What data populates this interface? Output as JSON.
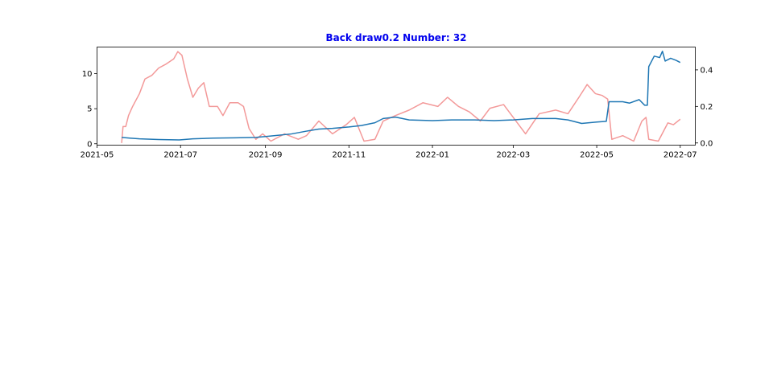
{
  "chart_data": {
    "type": "line",
    "title": "Back draw0.2 Number: 32",
    "title_color": "#0000ee",
    "xlabel": "",
    "ylabel": "",
    "grid": false,
    "x_ticks": [
      "2021-05",
      "2021-07",
      "2021-09",
      "2021-11",
      "2022-01",
      "2022-03",
      "2022-05",
      "2022-07"
    ],
    "y_left": {
      "ticks": [
        0,
        5,
        10
      ],
      "ylim": [
        -0.2,
        13.8
      ]
    },
    "y_right": {
      "ticks": [
        "0.0",
        "0.2",
        "0.4"
      ],
      "ylim": [
        -0.012,
        0.525
      ]
    },
    "xlim": [
      "2021-05-01",
      "2022-07-12"
    ],
    "series": [
      {
        "axis": "left",
        "color": "#1f77b4",
        "opacity": 1,
        "points": [
          [
            "2021-05-19",
            0.9
          ],
          [
            "2021-05-25",
            0.8
          ],
          [
            "2021-06-01",
            0.7
          ],
          [
            "2021-06-15",
            0.6
          ],
          [
            "2021-06-30",
            0.55
          ],
          [
            "2021-07-10",
            0.7
          ],
          [
            "2021-07-25",
            0.8
          ],
          [
            "2021-08-10",
            0.85
          ],
          [
            "2021-08-25",
            0.9
          ],
          [
            "2021-09-05",
            1.1
          ],
          [
            "2021-09-20",
            1.4
          ],
          [
            "2021-10-01",
            1.8
          ],
          [
            "2021-10-10",
            2.1
          ],
          [
            "2021-10-20",
            2.2
          ],
          [
            "2021-11-01",
            2.4
          ],
          [
            "2021-11-10",
            2.6
          ],
          [
            "2021-11-20",
            3.0
          ],
          [
            "2021-11-26",
            3.6
          ],
          [
            "2021-12-05",
            3.8
          ],
          [
            "2021-12-15",
            3.4
          ],
          [
            "2022-01-01",
            3.3
          ],
          [
            "2022-01-15",
            3.4
          ],
          [
            "2022-02-01",
            3.4
          ],
          [
            "2022-02-15",
            3.3
          ],
          [
            "2022-03-01",
            3.4
          ],
          [
            "2022-03-15",
            3.6
          ],
          [
            "2022-04-01",
            3.6
          ],
          [
            "2022-04-10",
            3.4
          ],
          [
            "2022-04-20",
            2.9
          ],
          [
            "2022-05-01",
            3.1
          ],
          [
            "2022-05-08",
            3.2
          ],
          [
            "2022-05-10",
            6.0
          ],
          [
            "2022-05-20",
            6.0
          ],
          [
            "2022-05-25",
            5.8
          ],
          [
            "2022-06-01",
            6.3
          ],
          [
            "2022-06-05",
            5.5
          ],
          [
            "2022-06-07",
            5.5
          ],
          [
            "2022-06-08",
            11.0
          ],
          [
            "2022-06-12",
            12.5
          ],
          [
            "2022-06-16",
            12.3
          ],
          [
            "2022-06-18",
            13.2
          ],
          [
            "2022-06-20",
            11.8
          ],
          [
            "2022-06-24",
            12.2
          ],
          [
            "2022-06-28",
            11.9
          ],
          [
            "2022-07-01",
            11.6
          ]
        ]
      },
      {
        "axis": "right",
        "color": "#f08080",
        "opacity": 0.8,
        "points": [
          [
            "2021-05-19",
            0.0
          ],
          [
            "2021-05-20",
            0.09
          ],
          [
            "2021-05-22",
            0.09
          ],
          [
            "2021-05-24",
            0.15
          ],
          [
            "2021-05-27",
            0.2
          ],
          [
            "2021-06-01",
            0.27
          ],
          [
            "2021-06-05",
            0.35
          ],
          [
            "2021-06-10",
            0.37
          ],
          [
            "2021-06-15",
            0.41
          ],
          [
            "2021-06-20",
            0.43
          ],
          [
            "2021-06-26",
            0.46
          ],
          [
            "2021-06-29",
            0.5
          ],
          [
            "2021-07-02",
            0.48
          ],
          [
            "2021-07-06",
            0.35
          ],
          [
            "2021-07-10",
            0.25
          ],
          [
            "2021-07-14",
            0.3
          ],
          [
            "2021-07-18",
            0.33
          ],
          [
            "2021-07-22",
            0.2
          ],
          [
            "2021-07-28",
            0.2
          ],
          [
            "2021-08-01",
            0.15
          ],
          [
            "2021-08-06",
            0.22
          ],
          [
            "2021-08-12",
            0.22
          ],
          [
            "2021-08-16",
            0.2
          ],
          [
            "2021-08-20",
            0.08
          ],
          [
            "2021-08-25",
            0.02
          ],
          [
            "2021-08-30",
            0.05
          ],
          [
            "2021-09-05",
            0.01
          ],
          [
            "2021-09-15",
            0.05
          ],
          [
            "2021-09-25",
            0.02
          ],
          [
            "2021-10-01",
            0.04
          ],
          [
            "2021-10-10",
            0.12
          ],
          [
            "2021-10-20",
            0.05
          ],
          [
            "2021-10-30",
            0.1
          ],
          [
            "2021-11-05",
            0.14
          ],
          [
            "2021-11-12",
            0.01
          ],
          [
            "2021-11-20",
            0.02
          ],
          [
            "2021-11-26",
            0.12
          ],
          [
            "2021-12-05",
            0.15
          ],
          [
            "2021-12-15",
            0.18
          ],
          [
            "2021-12-25",
            0.22
          ],
          [
            "2022-01-05",
            0.2
          ],
          [
            "2022-01-12",
            0.25
          ],
          [
            "2022-01-20",
            0.2
          ],
          [
            "2022-01-28",
            0.17
          ],
          [
            "2022-02-05",
            0.12
          ],
          [
            "2022-02-12",
            0.19
          ],
          [
            "2022-02-22",
            0.21
          ],
          [
            "2022-03-01",
            0.14
          ],
          [
            "2022-03-10",
            0.05
          ],
          [
            "2022-03-20",
            0.16
          ],
          [
            "2022-04-01",
            0.18
          ],
          [
            "2022-04-10",
            0.16
          ],
          [
            "2022-04-18",
            0.25
          ],
          [
            "2022-04-24",
            0.32
          ],
          [
            "2022-04-30",
            0.27
          ],
          [
            "2022-05-05",
            0.26
          ],
          [
            "2022-05-09",
            0.24
          ],
          [
            "2022-05-12",
            0.02
          ],
          [
            "2022-05-20",
            0.04
          ],
          [
            "2022-05-28",
            0.01
          ],
          [
            "2022-06-03",
            0.12
          ],
          [
            "2022-06-06",
            0.14
          ],
          [
            "2022-06-08",
            0.02
          ],
          [
            "2022-06-15",
            0.01
          ],
          [
            "2022-06-22",
            0.11
          ],
          [
            "2022-06-26",
            0.1
          ],
          [
            "2022-07-01",
            0.13
          ]
        ]
      }
    ]
  }
}
